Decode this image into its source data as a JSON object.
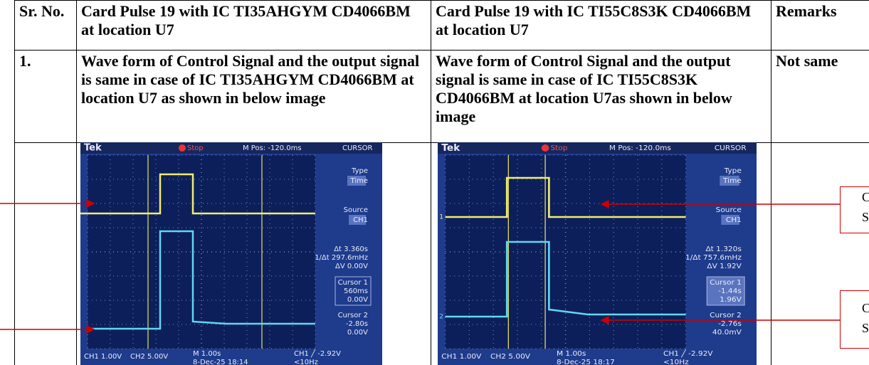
{
  "table": {
    "header": [
      "Sr. No.",
      "Card Pulse 19 with IC TI35AHGYM CD4066BM at location U7",
      "Card Pulse 19 with IC TI55C8S3K CD4066BM at location U7",
      "Remarks"
    ],
    "rows": [
      [
        "1.",
        "Wave form of Control Signal and the output signal is same in case of IC TI35AHGYM CD4066BM at location U7 as shown in below image",
        "Wave form of Control Signal and the output signal is same in case of IC TI55C8S3K CD4066BM at location U7as shown in below image",
        "Not same"
      ]
    ]
  },
  "scopes": [
    {
      "top": [
        "Tek",
        "Stop",
        "M Pos: -120.0ms",
        "CURSOR"
      ],
      "panel": [
        "Type",
        "Time",
        "Source",
        "CH1",
        "Δt 3.360s",
        "1/Δt 297.6mHz",
        "ΔV 0.00V",
        "Cursor 1",
        "560ms",
        "0.00V",
        "Cursor 2",
        "-2.80s",
        "0.00V"
      ],
      "footer": [
        "CH1 1.00V",
        "CH2 5.00V",
        "M 1.00s",
        "8-Dec-25 18:14",
        "CH1 ╱ -2.92V",
        "<10Hz"
      ]
    },
    {
      "top": [
        "Tek",
        "Stop",
        "M Pos: -120.0ms",
        "CURSOR"
      ],
      "panel": [
        "Type",
        "Time",
        "Source",
        "CH1",
        "Δt 1.320s",
        "1/Δt 757.6mHz",
        "ΔV 1.92V",
        "Cursor 1",
        "-1.44s",
        "1.96V",
        "Cursor 2",
        "-2.76s",
        "40.0mV"
      ],
      "footer": [
        "CH1 1.00V",
        "CH2 5.00V",
        "M 1.00s",
        "8-Dec-25 18:17",
        "CH1 ╱ -2.92V",
        "<10Hz"
      ],
      "markers": [
        "1",
        "2"
      ]
    }
  ],
  "callouts": [
    [
      "C",
      "S"
    ],
    [
      "C",
      "S"
    ]
  ]
}
